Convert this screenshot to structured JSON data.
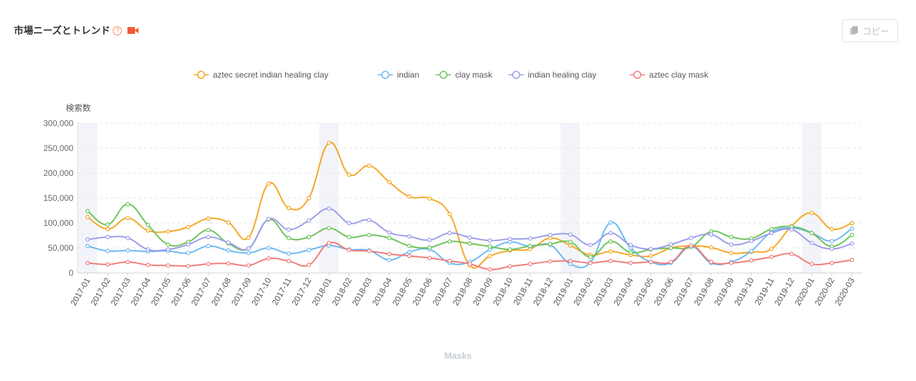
{
  "header": {
    "title": "市場ニーズとトレンド",
    "help_icon": "question-circle-icon",
    "video_icon": "video-camera-icon"
  },
  "toolbar": {
    "copy_label": "コピー",
    "copy_icon": "copy-icon"
  },
  "footer": {
    "label": "Masks"
  },
  "chart_data": {
    "type": "line",
    "ylabel": "検索数",
    "xlabel": "",
    "ylim": [
      0,
      300000
    ],
    "yticks": [
      "0",
      "50,000",
      "100,000",
      "150,000",
      "200,000",
      "250,000",
      "300,000"
    ],
    "yticks_values": [
      0,
      50000,
      100000,
      150000,
      200000,
      250000,
      300000
    ],
    "grid": "horizontal-dashed",
    "legend_position": "top-center",
    "highlight_months": [
      "2017-01",
      "2018-01",
      "2019-01",
      "2020-01"
    ],
    "categories": [
      "2017-01",
      "2017-02",
      "2017-03",
      "2017-04",
      "2017-05",
      "2017-06",
      "2017-07",
      "2017-08",
      "2017-09",
      "2017-10",
      "2017-11",
      "2017-12",
      "2018-01",
      "2018-02",
      "2018-03",
      "2018-04",
      "2018-05",
      "2018-06",
      "2018-07",
      "2018-08",
      "2018-09",
      "2018-10",
      "2018-11",
      "2018-12",
      "2019-01",
      "2019-02",
      "2019-03",
      "2019-04",
      "2019-05",
      "2019-06",
      "2019-07",
      "2019-08",
      "2019-09",
      "2019-10",
      "2019-11",
      "2019-12",
      "2020-01",
      "2020-02",
      "2020-03"
    ],
    "series": [
      {
        "name": "aztec secret indian healing clay",
        "color": "#f5a623",
        "values": [
          112000,
          88000,
          110000,
          85000,
          83000,
          92000,
          109000,
          101000,
          71000,
          179000,
          130000,
          150000,
          261000,
          197000,
          215000,
          182000,
          153000,
          149000,
          118000,
          15000,
          34000,
          45000,
          48000,
          70000,
          55000,
          36000,
          43000,
          36000,
          34000,
          50000,
          54000,
          51000,
          40000,
          42000,
          48000,
          94000,
          120000,
          88000,
          100000
        ]
      },
      {
        "name": "indian",
        "color": "#6cb8f0",
        "values": [
          54000,
          44000,
          45000,
          43000,
          44000,
          40000,
          54000,
          45000,
          40000,
          50000,
          39000,
          46000,
          55000,
          47000,
          45000,
          26000,
          42000,
          47000,
          20000,
          22000,
          47000,
          62000,
          53000,
          56000,
          18000,
          21000,
          101000,
          50000,
          22000,
          20000,
          53000,
          20000,
          22000,
          44000,
          82000,
          90000,
          80000,
          64000,
          89000
        ]
      },
      {
        "name": "clay mask",
        "color": "#6cc35a",
        "values": [
          124000,
          97000,
          138000,
          96000,
          57000,
          62000,
          86000,
          59000,
          49000,
          107000,
          70000,
          72000,
          90000,
          72000,
          76000,
          70000,
          54000,
          51000,
          63000,
          59000,
          53000,
          47000,
          54000,
          58000,
          62000,
          32000,
          63000,
          41000,
          47000,
          50000,
          52000,
          83000,
          72000,
          69000,
          88000,
          93000,
          80000,
          53000,
          76000
        ]
      },
      {
        "name": "indian healing clay",
        "color": "#9b9ceb",
        "values": [
          67000,
          72000,
          70000,
          47000,
          47000,
          57000,
          72000,
          61000,
          49000,
          108000,
          87000,
          105000,
          129000,
          100000,
          106000,
          81000,
          73000,
          66000,
          80000,
          71000,
          65000,
          68000,
          69000,
          76000,
          77000,
          56000,
          80000,
          56000,
          48000,
          57000,
          70000,
          77000,
          57000,
          64000,
          80000,
          87000,
          60000,
          48000,
          59000
        ]
      },
      {
        "name": "aztec clay mask",
        "color": "#f07b7b",
        "values": [
          20000,
          17000,
          22000,
          16000,
          15000,
          14000,
          18000,
          19000,
          15000,
          29000,
          24000,
          16000,
          60000,
          46000,
          44000,
          38000,
          34000,
          30000,
          24000,
          18000,
          7000,
          13000,
          18000,
          23000,
          24000,
          20000,
          24000,
          20000,
          22000,
          22000,
          55000,
          22000,
          20000,
          25000,
          32000,
          38000,
          18000,
          20000,
          26000
        ]
      }
    ]
  }
}
